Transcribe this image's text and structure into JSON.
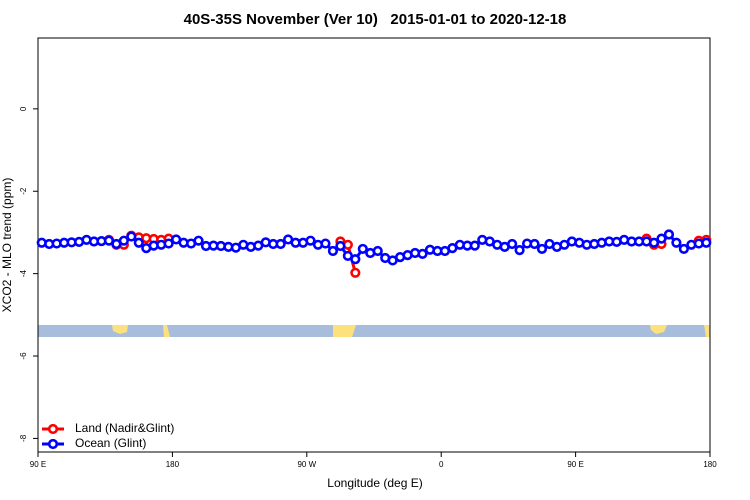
{
  "chart_data": {
    "type": "line",
    "title": "40S-35S November (Ver 10)   2015-01-01 to 2020-12-18",
    "x_label": "Longitude (deg E)",
    "y_label": "XCO2 - MLO trend (ppm)",
    "xlim": [
      90,
      540
    ],
    "xticks": [
      {
        "value": 90,
        "label": "90 E"
      },
      {
        "value": 180,
        "label": "180"
      },
      {
        "value": 270,
        "label": "90 W"
      },
      {
        "value": 360,
        "label": "0"
      },
      {
        "value": 450,
        "label": "90 E"
      },
      {
        "value": 540,
        "label": "180"
      }
    ],
    "ylim": [
      -8.33,
      1.72
    ],
    "yticks": [
      0,
      -2,
      -4,
      -6,
      -8
    ],
    "legend": "bottomleft",
    "x": [
      92.5,
      97.5,
      102.5,
      107.5,
      112.5,
      117.5,
      122.5,
      127.5,
      132.5,
      137.5,
      142.5,
      147.5,
      152.5,
      157.5,
      162.5,
      167.5,
      172.5,
      177.5,
      182.5,
      187.5,
      192.5,
      197.5,
      202.5,
      207.5,
      212.5,
      217.5,
      222.5,
      227.5,
      232.5,
      237.5,
      242.5,
      247.5,
      252.5,
      257.5,
      262.5,
      267.5,
      272.5,
      277.5,
      282.5,
      287.5,
      292.5,
      297.5,
      302.5,
      307.5,
      312.5,
      317.5,
      322.5,
      327.5,
      332.5,
      337.5,
      342.5,
      347.5,
      352.5,
      357.5,
      362.5,
      367.5,
      372.5,
      377.5,
      382.5,
      387.5,
      392.5,
      397.5,
      402.5,
      407.5,
      412.5,
      417.5,
      422.5,
      427.5,
      432.5,
      437.5,
      442.5,
      447.5,
      452.5,
      457.5,
      462.5,
      467.5,
      472.5,
      477.5,
      482.5,
      487.5,
      492.5,
      497.5,
      502.5,
      507.5,
      512.5,
      517.5,
      522.5,
      527.5,
      532.5,
      537.5
    ],
    "series": [
      {
        "name": "Land (Nadir&Glint)",
        "color": "#ff0000",
        "values": [
          null,
          null,
          null,
          null,
          null,
          null,
          null,
          null,
          null,
          -3.18,
          -3.3,
          -3.3,
          -3.08,
          -3.12,
          -3.14,
          -3.16,
          -3.18,
          -3.15,
          null,
          null,
          null,
          null,
          null,
          null,
          null,
          null,
          null,
          null,
          null,
          null,
          null,
          null,
          null,
          null,
          null,
          null,
          null,
          null,
          null,
          null,
          -3.22,
          -3.3,
          -3.98,
          null,
          null,
          null,
          null,
          null,
          null,
          null,
          null,
          null,
          null,
          null,
          null,
          null,
          null,
          null,
          null,
          null,
          null,
          null,
          null,
          null,
          null,
          null,
          null,
          null,
          null,
          null,
          null,
          null,
          null,
          null,
          null,
          null,
          null,
          null,
          null,
          null,
          null,
          -3.15,
          -3.3,
          -3.28,
          -3.05,
          null,
          null,
          null,
          -3.2,
          -3.18
        ]
      },
      {
        "name": "Ocean (Glint)",
        "color": "#0000ff",
        "values": [
          -3.25,
          -3.28,
          -3.27,
          -3.25,
          -3.24,
          -3.23,
          -3.18,
          -3.22,
          -3.21,
          -3.2,
          -3.28,
          -3.2,
          -3.1,
          -3.25,
          -3.38,
          -3.32,
          -3.3,
          -3.27,
          -3.17,
          -3.25,
          -3.27,
          -3.2,
          -3.33,
          -3.32,
          -3.33,
          -3.35,
          -3.37,
          -3.3,
          -3.35,
          -3.32,
          -3.24,
          -3.28,
          -3.28,
          -3.17,
          -3.25,
          -3.25,
          -3.2,
          -3.3,
          -3.27,
          -3.45,
          -3.33,
          -3.57,
          -3.65,
          -3.4,
          -3.5,
          -3.45,
          -3.62,
          -3.68,
          -3.6,
          -3.55,
          -3.5,
          -3.52,
          -3.42,
          -3.45,
          -3.45,
          -3.38,
          -3.3,
          -3.32,
          -3.32,
          -3.18,
          -3.22,
          -3.3,
          -3.35,
          -3.28,
          -3.43,
          -3.27,
          -3.28,
          -3.4,
          -3.28,
          -3.35,
          -3.3,
          -3.22,
          -3.25,
          -3.3,
          -3.28,
          -3.25,
          -3.22,
          -3.23,
          -3.18,
          -3.22,
          -3.22,
          -3.22,
          -3.25,
          -3.15,
          -3.05,
          -3.25,
          -3.4,
          -3.3,
          -3.27,
          -3.25
        ]
      }
    ]
  }
}
